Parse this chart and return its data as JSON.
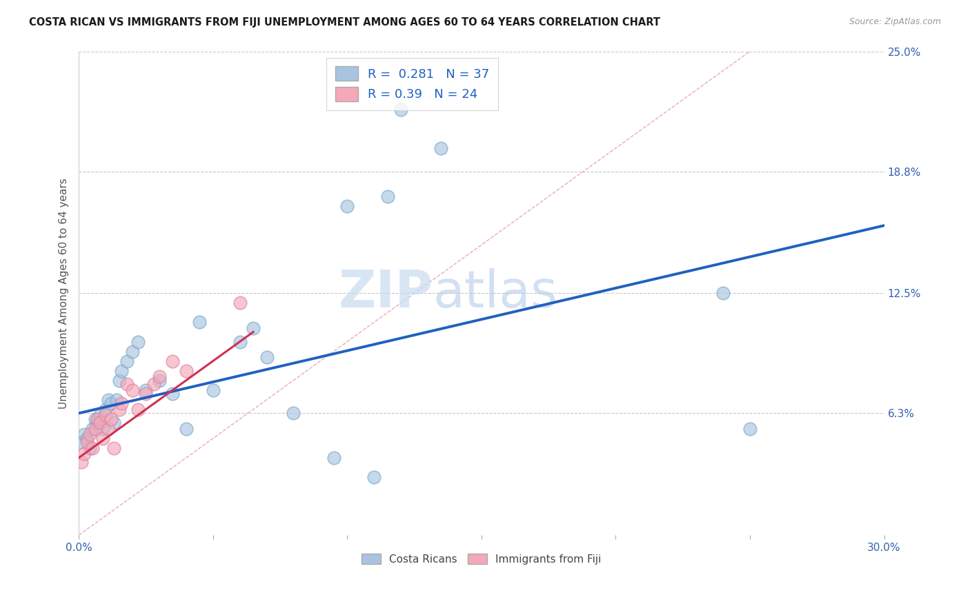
{
  "title": "COSTA RICAN VS IMMIGRANTS FROM FIJI UNEMPLOYMENT AMONG AGES 60 TO 64 YEARS CORRELATION CHART",
  "source": "Source: ZipAtlas.com",
  "ylabel": "Unemployment Among Ages 60 to 64 years",
  "xlim": [
    0.0,
    0.3
  ],
  "ylim": [
    0.0,
    0.25
  ],
  "ytick_labels_right": [
    "6.3%",
    "12.5%",
    "18.8%",
    "25.0%"
  ],
  "ytick_values_right": [
    0.063,
    0.125,
    0.188,
    0.25
  ],
  "costa_rican_color": "#a8c4e0",
  "costa_rican_edge": "#7aaaca",
  "fiji_color": "#f4a8b8",
  "fiji_edge": "#e080a0",
  "trend_blue_color": "#2060c0",
  "trend_red_color": "#d03050",
  "diag_color": "#e8a0b0",
  "R_cr": 0.281,
  "N_cr": 37,
  "R_fj": 0.39,
  "N_fj": 24,
  "costa_rican_x": [
    0.001,
    0.002,
    0.003,
    0.004,
    0.005,
    0.006,
    0.007,
    0.008,
    0.009,
    0.01,
    0.011,
    0.012,
    0.013,
    0.014,
    0.015,
    0.016,
    0.018,
    0.02,
    0.022,
    0.025,
    0.03,
    0.035,
    0.04,
    0.045,
    0.05,
    0.06,
    0.065,
    0.07,
    0.08,
    0.095,
    0.11,
    0.115,
    0.12,
    0.135,
    0.24,
    0.25,
    0.1
  ],
  "costa_rican_y": [
    0.048,
    0.052,
    0.05,
    0.045,
    0.055,
    0.06,
    0.058,
    0.062,
    0.055,
    0.065,
    0.07,
    0.068,
    0.058,
    0.07,
    0.08,
    0.085,
    0.09,
    0.095,
    0.1,
    0.075,
    0.08,
    0.073,
    0.055,
    0.11,
    0.075,
    0.1,
    0.107,
    0.092,
    0.063,
    0.04,
    0.03,
    0.175,
    0.22,
    0.2,
    0.125,
    0.055,
    0.17
  ],
  "fiji_x": [
    0.001,
    0.002,
    0.003,
    0.004,
    0.005,
    0.006,
    0.007,
    0.008,
    0.009,
    0.01,
    0.011,
    0.012,
    0.013,
    0.015,
    0.016,
    0.018,
    0.02,
    0.022,
    0.025,
    0.028,
    0.03,
    0.035,
    0.04,
    0.06
  ],
  "fiji_y": [
    0.038,
    0.042,
    0.048,
    0.052,
    0.045,
    0.055,
    0.06,
    0.058,
    0.05,
    0.062,
    0.055,
    0.06,
    0.045,
    0.065,
    0.068,
    0.078,
    0.075,
    0.065,
    0.073,
    0.078,
    0.082,
    0.09,
    0.085,
    0.12
  ],
  "watermark_zip": "ZIP",
  "watermark_atlas": "atlas",
  "background_color": "#ffffff",
  "grid_color": "#c8c8c8"
}
